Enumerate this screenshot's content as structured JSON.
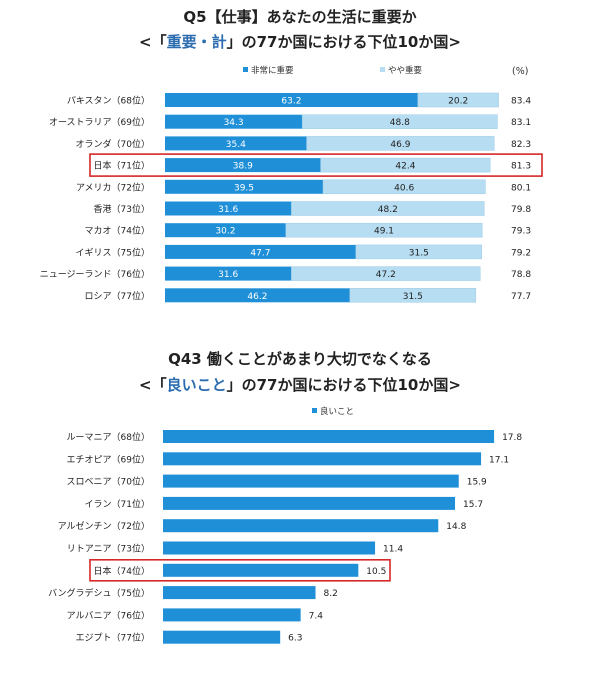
{
  "charts": [
    {
      "title": "Q5【仕事】あなたの生活に重要か",
      "subtitle_pre": "<「",
      "subtitle_hl": "重要・計",
      "subtitle_post": "」の77か国における下位10か国>"
    },
    {
      "title": "Q43 働くことがあまり大切でなくなる",
      "subtitle_pre": "<「",
      "subtitle_hl": "良いこと",
      "subtitle_post": "」の77か国における下位10か国>"
    }
  ],
  "chart_data": [
    {
      "type": "bar",
      "stacked": true,
      "orientation": "horizontal",
      "title": "Q5【仕事】あなたの生活に重要か",
      "subtitle": "<「重要・計」の77か国における下位10か国>",
      "unit_label": "(%)",
      "categories": [
        "パキスタン（68位）",
        "オーストラリア（69位）",
        "オランダ（70位）",
        "日本（71位）",
        "アメリカ（72位）",
        "香港（73位）",
        "マカオ（74位）",
        "イギリス（75位）",
        "ニュージーランド（76位）",
        "ロシア（77位）"
      ],
      "series": [
        {
          "name": "非常に重要",
          "color": "#1f8fd8",
          "values": [
            63.2,
            34.3,
            35.4,
            38.9,
            39.5,
            31.6,
            30.2,
            47.7,
            31.6,
            46.2
          ]
        },
        {
          "name": "やや重要",
          "color": "#b7ddf2",
          "values": [
            20.2,
            48.8,
            46.9,
            42.4,
            40.6,
            48.2,
            49.1,
            31.5,
            47.2,
            31.5
          ]
        }
      ],
      "totals": [
        83.4,
        83.1,
        82.3,
        81.3,
        80.1,
        79.8,
        79.3,
        79.2,
        78.8,
        77.7
      ],
      "highlight_index": 3,
      "highlight_color": "#d62728",
      "legend_position": "top"
    },
    {
      "type": "bar",
      "orientation": "horizontal",
      "title": "Q43 働くことがあまり大切でなくなる",
      "subtitle": "<「良いこと」の77か国における下位10か国>",
      "categories": [
        "ルーマニア（68位）",
        "エチオピア（69位）",
        "スロベニア（70位）",
        "イラン（71位）",
        "アルゼンチン（72位）",
        "リトアニア（73位）",
        "日本（74位）",
        "バングラデシュ（75位）",
        "アルバニア（76位）",
        "エジプト（77位）"
      ],
      "series": [
        {
          "name": "良いこと",
          "color": "#1f8fd8",
          "values": [
            17.8,
            17.1,
            15.9,
            15.7,
            14.8,
            11.4,
            10.5,
            8.2,
            7.4,
            6.3
          ]
        }
      ],
      "highlight_index": 6,
      "highlight_color": "#d62728",
      "legend_position": "top"
    }
  ]
}
